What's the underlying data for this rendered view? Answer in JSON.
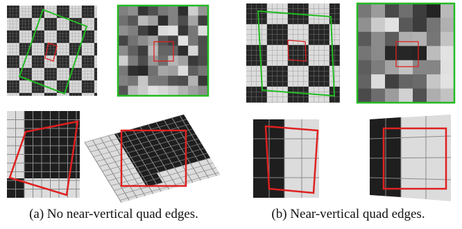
{
  "panels": [
    {
      "caption": "(a) No near-vertical quad edges."
    },
    {
      "caption": "(b) Near-vertical quad edges."
    }
  ]
}
